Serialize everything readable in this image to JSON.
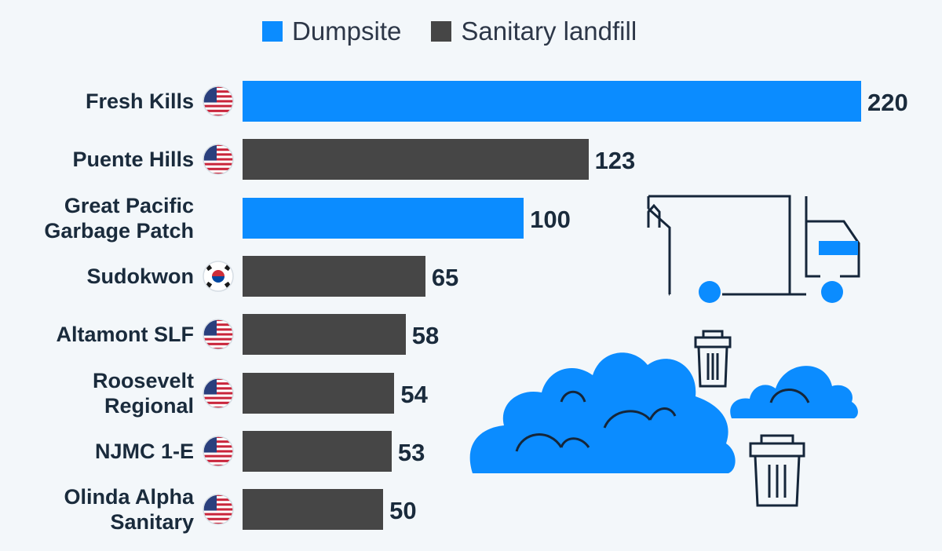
{
  "legend": {
    "dumpsite": "Dumpsite",
    "landfill": "Sanitary landfill"
  },
  "colors": {
    "dumpsite": "#0b8cff",
    "landfill": "#464646",
    "text": "#1a2b3c",
    "background": "#f3f7fa",
    "icon_line": "#15263a"
  },
  "chart_data": {
    "type": "bar",
    "orientation": "horizontal",
    "categories": [
      [
        "Fresh Kills"
      ],
      [
        "Puente Hills"
      ],
      [
        "Great Pacific",
        "Garbage Patch"
      ],
      [
        "Sudokwon"
      ],
      [
        "Altamont SLF"
      ],
      [
        "Roosevelt",
        "Regional"
      ],
      [
        "NJMC 1-E"
      ],
      [
        "Olinda Alpha",
        "Sanitary"
      ]
    ],
    "values": [
      220,
      123,
      100,
      65,
      58,
      54,
      53,
      50
    ],
    "types": [
      "dumpsite",
      "landfill",
      "dumpsite",
      "landfill",
      "landfill",
      "landfill",
      "landfill",
      "landfill"
    ],
    "flags": [
      "us",
      "us",
      "none",
      "kr",
      "us",
      "us",
      "us",
      "us"
    ],
    "legend_position": "top",
    "grid": false,
    "xlim": [
      0,
      220
    ]
  }
}
